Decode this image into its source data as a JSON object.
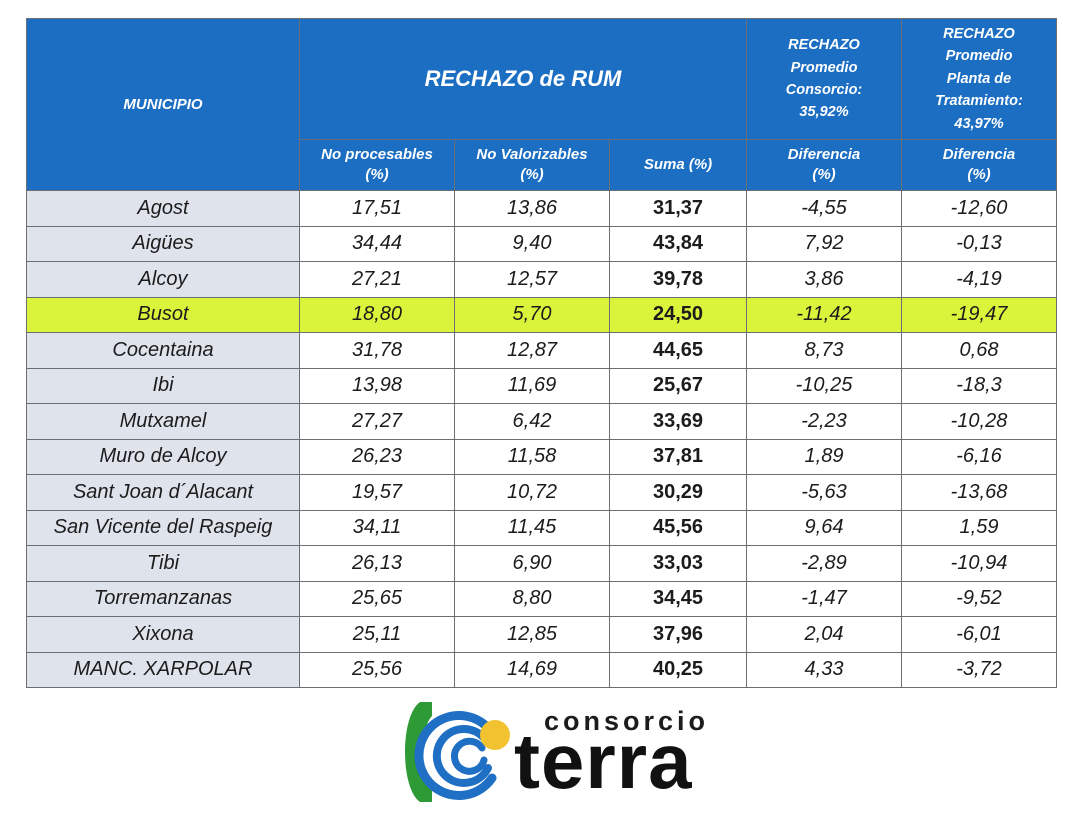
{
  "header": {
    "municipio": "MUNICIPIO",
    "rechazo_rum": "RECHAZO de RUM",
    "consorcio": [
      "RECHAZO",
      "Promedio",
      "Consorcio:",
      "35,92%"
    ],
    "planta": [
      "RECHAZO",
      "Promedio",
      "Planta de",
      "Tratamiento:",
      "43,97%"
    ],
    "sub": [
      [
        "No procesables",
        "(%)"
      ],
      [
        "No Valorizables",
        "(%)"
      ],
      [
        "Suma (%)"
      ],
      [
        "Diferencia",
        "(%)"
      ],
      [
        "Diferencia",
        "(%)"
      ]
    ]
  },
  "rows": [
    [
      "Agost",
      "17,51",
      "13,86",
      "31,37",
      "-4,55",
      "-12,60"
    ],
    [
      "Aigües",
      "34,44",
      "9,40",
      "43,84",
      "7,92",
      "-0,13"
    ],
    [
      "Alcoy",
      "27,21",
      "12,57",
      "39,78",
      "3,86",
      "-4,19"
    ],
    [
      "Busot",
      "18,80",
      "5,70",
      "24,50",
      "-11,42",
      "-19,47"
    ],
    [
      "Cocentaina",
      "31,78",
      "12,87",
      "44,65",
      "8,73",
      "0,68"
    ],
    [
      "Ibi",
      "13,98",
      "11,69",
      "25,67",
      "-10,25",
      "-18,3"
    ],
    [
      "Mutxamel",
      "27,27",
      "6,42",
      "33,69",
      "-2,23",
      "-10,28"
    ],
    [
      "Muro de Alcoy",
      "26,23",
      "11,58",
      "37,81",
      "1,89",
      "-6,16"
    ],
    [
      "Sant Joan d´Alacant",
      "19,57",
      "10,72",
      "30,29",
      "-5,63",
      "-13,68"
    ],
    [
      "San Vicente del Raspeig",
      "34,11",
      "11,45",
      "45,56",
      "9,64",
      "1,59"
    ],
    [
      "Tibi",
      "26,13",
      "6,90",
      "33,03",
      "-2,89",
      "-10,94"
    ],
    [
      "Torremanzanas",
      "25,65",
      "8,80",
      "34,45",
      "-1,47",
      "-9,52"
    ],
    [
      "Xixona",
      "25,11",
      "12,85",
      "37,96",
      "2,04",
      "-6,01"
    ],
    [
      "MANC. XARPOLAR",
      "25,56",
      "14,69",
      "40,25",
      "4,33",
      "-3,72"
    ]
  ],
  "highlight_row": "Busot",
  "logo": {
    "text_top": "consorcio",
    "text_main": "terra"
  },
  "colors": {
    "header_bg": "#1b6ec2",
    "highlight": "#d9f43a",
    "municipio_bg": "#dfe3ec",
    "logo_green": "#2e9a35",
    "logo_blue": "#1f6fc4",
    "logo_yellow": "#f2c230"
  }
}
